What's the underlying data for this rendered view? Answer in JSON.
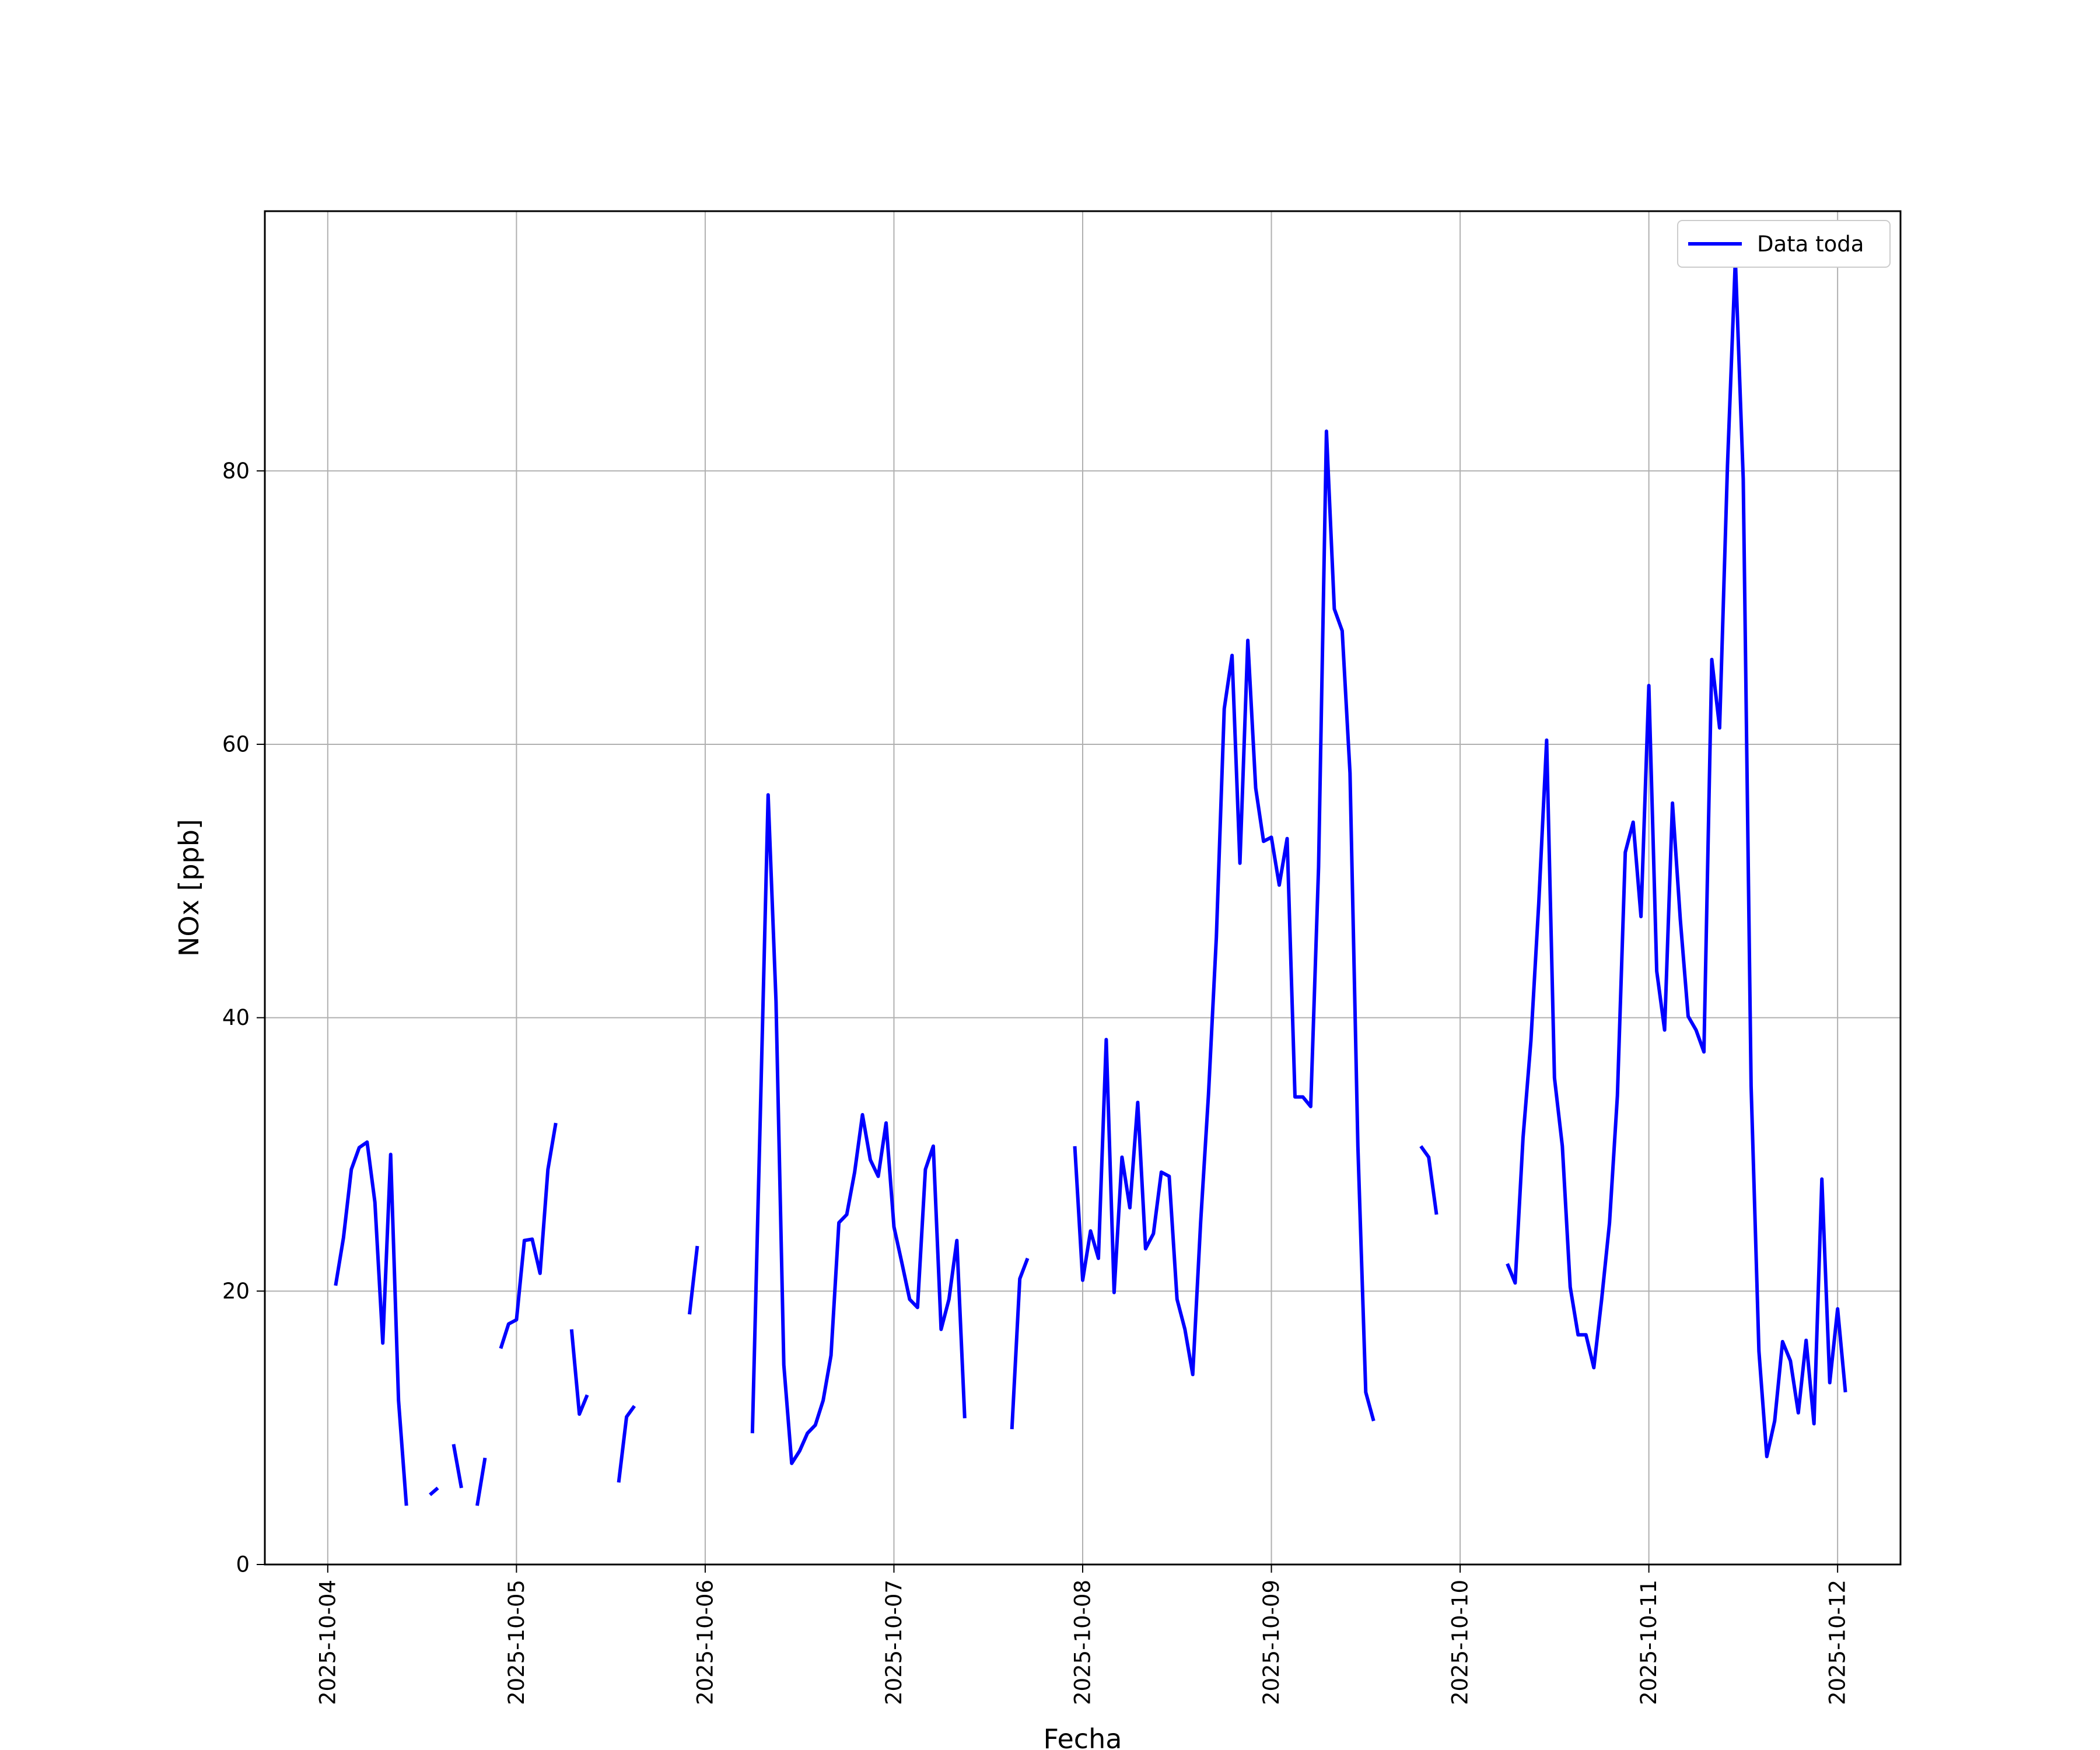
{
  "chart_data": {
    "type": "line",
    "xlabel": "Fecha",
    "ylabel": "NOx [ppb]",
    "xlim": [
      "2025-10-03T16:00",
      "2025-10-12T08:00"
    ],
    "ylim": [
      0,
      99
    ],
    "x_ticks": [
      "2025-10-04",
      "2025-10-05",
      "2025-10-06",
      "2025-10-07",
      "2025-10-08",
      "2025-10-09",
      "2025-10-10",
      "2025-10-11",
      "2025-10-12"
    ],
    "y_ticks": [
      "0",
      "20",
      "40",
      "60",
      "80"
    ],
    "grid": true,
    "legend": "top-right",
    "series": [
      {
        "name": "Data toda",
        "color": "#0000ff",
        "segments": [
          [
            [
              "2025-10-04T01:00",
              20.4
            ],
            [
              "2025-10-04T02:00",
              23.9
            ],
            [
              "2025-10-04T03:00",
              28.9
            ],
            [
              "2025-10-04T04:00",
              30.5
            ],
            [
              "2025-10-04T05:00",
              30.9
            ],
            [
              "2025-10-04T06:00",
              26.5
            ],
            [
              "2025-10-04T07:00",
              16.2
            ],
            [
              "2025-10-04T08:00",
              30.0
            ],
            [
              "2025-10-04T09:00",
              12.0
            ],
            [
              "2025-10-04T10:00",
              4.3
            ]
          ],
          [
            [
              "2025-10-04T13:00",
              5.1
            ],
            [
              "2025-10-04T14:00",
              5.6
            ]
          ],
          [
            [
              "2025-10-04T16:00",
              8.8
            ],
            [
              "2025-10-04T17:00",
              5.6
            ]
          ],
          [
            [
              "2025-10-04T19:00",
              4.3
            ],
            [
              "2025-10-04T20:00",
              7.8
            ]
          ],
          [
            [
              "2025-10-04T22:00",
              15.8
            ],
            [
              "2025-10-04T23:00",
              17.6
            ],
            [
              "2025-10-05T00:00",
              17.9
            ],
            [
              "2025-10-05T01:00",
              23.7
            ],
            [
              "2025-10-05T02:00",
              23.8
            ],
            [
              "2025-10-05T03:00",
              21.3
            ],
            [
              "2025-10-05T04:00",
              28.9
            ],
            [
              "2025-10-05T05:00",
              32.3
            ]
          ],
          [
            [
              "2025-10-05T07:00",
              17.2
            ],
            [
              "2025-10-05T08:00",
              11.0
            ],
            [
              "2025-10-05T09:00",
              12.4
            ]
          ],
          [
            [
              "2025-10-05T13:00",
              6.0
            ],
            [
              "2025-10-05T14:00",
              10.8
            ],
            [
              "2025-10-05T15:00",
              11.6
            ]
          ],
          [
            [
              "2025-10-05T22:00",
              18.3
            ],
            [
              "2025-10-05T23:00",
              23.3
            ]
          ],
          [
            [
              "2025-10-06T06:00",
              9.6
            ],
            [
              "2025-10-06T07:00",
              32.7
            ],
            [
              "2025-10-06T08:00",
              56.3
            ],
            [
              "2025-10-06T09:00",
              41.2
            ],
            [
              "2025-10-06T10:00",
              14.6
            ],
            [
              "2025-10-06T11:00",
              7.4
            ],
            [
              "2025-10-06T12:00",
              8.3
            ],
            [
              "2025-10-06T13:00",
              9.6
            ],
            [
              "2025-10-06T14:00",
              10.2
            ],
            [
              "2025-10-06T15:00",
              12.0
            ],
            [
              "2025-10-06T16:00",
              15.3
            ],
            [
              "2025-10-06T17:00",
              25.0
            ],
            [
              "2025-10-06T18:00",
              25.6
            ],
            [
              "2025-10-06T19:00",
              28.7
            ],
            [
              "2025-10-06T20:00",
              32.9
            ],
            [
              "2025-10-06T21:00",
              29.6
            ],
            [
              "2025-10-06T22:00",
              28.4
            ],
            [
              "2025-10-06T23:00",
              32.3
            ],
            [
              "2025-10-07T00:00",
              24.7
            ],
            [
              "2025-10-07T01:00",
              22.1
            ],
            [
              "2025-10-07T02:00",
              19.4
            ],
            [
              "2025-10-07T03:00",
              18.8
            ],
            [
              "2025-10-07T04:00",
              28.9
            ],
            [
              "2025-10-07T05:00",
              30.6
            ],
            [
              "2025-10-07T06:00",
              17.2
            ],
            [
              "2025-10-07T07:00",
              19.4
            ],
            [
              "2025-10-07T08:00",
              23.7
            ],
            [
              "2025-10-07T09:00",
              10.7
            ]
          ],
          [
            [
              "2025-10-07T15:00",
              9.9
            ],
            [
              "2025-10-07T16:00",
              20.9
            ],
            [
              "2025-10-07T17:00",
              22.4
            ]
          ],
          [
            [
              "2025-10-07T23:00",
              30.6
            ],
            [
              "2025-10-08T00:00",
              20.8
            ],
            [
              "2025-10-08T01:00",
              24.4
            ],
            [
              "2025-10-08T02:00",
              22.4
            ],
            [
              "2025-10-08T03:00",
              38.4
            ],
            [
              "2025-10-08T04:00",
              19.9
            ],
            [
              "2025-10-08T05:00",
              29.8
            ],
            [
              "2025-10-08T06:00",
              26.1
            ],
            [
              "2025-10-08T07:00",
              33.8
            ],
            [
              "2025-10-08T08:00",
              23.1
            ],
            [
              "2025-10-08T09:00",
              24.2
            ],
            [
              "2025-10-08T10:00",
              28.7
            ],
            [
              "2025-10-08T11:00",
              28.4
            ],
            [
              "2025-10-08T12:00",
              19.4
            ],
            [
              "2025-10-08T13:00",
              17.2
            ],
            [
              "2025-10-08T14:00",
              13.9
            ],
            [
              "2025-10-08T15:00",
              25.0
            ],
            [
              "2025-10-08T16:00",
              34.4
            ],
            [
              "2025-10-08T17:00",
              45.9
            ],
            [
              "2025-10-08T18:00",
              62.6
            ],
            [
              "2025-10-08T19:00",
              66.5
            ],
            [
              "2025-10-08T20:00",
              51.3
            ],
            [
              "2025-10-08T21:00",
              67.6
            ],
            [
              "2025-10-08T22:00",
              56.8
            ],
            [
              "2025-10-08T23:00",
              52.9
            ],
            [
              "2025-10-09T00:00",
              53.2
            ],
            [
              "2025-10-09T01:00",
              49.7
            ],
            [
              "2025-10-09T02:00",
              53.1
            ],
            [
              "2025-10-09T03:00",
              34.2
            ],
            [
              "2025-10-09T04:00",
              34.2
            ],
            [
              "2025-10-09T05:00",
              33.5
            ],
            [
              "2025-10-09T06:00",
              51.0
            ],
            [
              "2025-10-09T07:00",
              82.9
            ],
            [
              "2025-10-09T08:00",
              69.9
            ],
            [
              "2025-10-09T09:00",
              68.3
            ],
            [
              "2025-10-09T10:00",
              57.9
            ],
            [
              "2025-10-09T11:00",
              30.6
            ],
            [
              "2025-10-09T12:00",
              12.6
            ],
            [
              "2025-10-09T13:00",
              10.5
            ]
          ],
          [
            [
              "2025-10-09T19:00",
              30.6
            ],
            [
              "2025-10-09T20:00",
              29.8
            ],
            [
              "2025-10-09T21:00",
              25.6
            ]
          ],
          [
            [
              "2025-10-10T06:00",
              22.0
            ],
            [
              "2025-10-10T07:00",
              20.6
            ],
            [
              "2025-10-10T08:00",
              31.2
            ],
            [
              "2025-10-10T09:00",
              38.3
            ],
            [
              "2025-10-10T10:00",
              48.4
            ],
            [
              "2025-10-10T11:00",
              60.3
            ],
            [
              "2025-10-10T12:00",
              35.6
            ],
            [
              "2025-10-10T13:00",
              30.6
            ],
            [
              "2025-10-10T14:00",
              20.3
            ],
            [
              "2025-10-10T15:00",
              16.8
            ],
            [
              "2025-10-10T16:00",
              16.8
            ],
            [
              "2025-10-10T17:00",
              14.4
            ],
            [
              "2025-10-10T18:00",
              19.4
            ],
            [
              "2025-10-10T19:00",
              25.0
            ],
            [
              "2025-10-10T20:00",
              34.3
            ],
            [
              "2025-10-10T21:00",
              52.1
            ],
            [
              "2025-10-10T22:00",
              54.3
            ],
            [
              "2025-10-10T23:00",
              47.4
            ],
            [
              "2025-10-11T00:00",
              64.3
            ],
            [
              "2025-10-11T01:00",
              43.4
            ],
            [
              "2025-10-11T02:00",
              39.1
            ],
            [
              "2025-10-11T03:00",
              55.7
            ],
            [
              "2025-10-11T04:00",
              47.2
            ],
            [
              "2025-10-11T05:00",
              40.1
            ],
            [
              "2025-10-11T06:00",
              39.1
            ],
            [
              "2025-10-11T07:00",
              37.5
            ],
            [
              "2025-10-11T08:00",
              66.2
            ],
            [
              "2025-10-11T09:00",
              61.2
            ],
            [
              "2025-10-11T10:00",
              80.4
            ],
            [
              "2025-10-11T11:00",
              95.5
            ],
            [
              "2025-10-11T12:00",
              79.4
            ],
            [
              "2025-10-11T13:00",
              35.0
            ],
            [
              "2025-10-11T14:00",
              15.6
            ],
            [
              "2025-10-11T15:00",
              7.9
            ],
            [
              "2025-10-11T16:00",
              10.5
            ],
            [
              "2025-10-11T17:00",
              16.3
            ],
            [
              "2025-10-11T18:00",
              14.9
            ],
            [
              "2025-10-11T19:00",
              11.1
            ],
            [
              "2025-10-11T20:00",
              16.4
            ],
            [
              "2025-10-11T21:00",
              10.3
            ],
            [
              "2025-10-11T22:00",
              28.2
            ],
            [
              "2025-10-11T23:00",
              13.3
            ],
            [
              "2025-10-12T00:00",
              18.7
            ],
            [
              "2025-10-12T01:00",
              12.6
            ]
          ]
        ]
      }
    ]
  }
}
